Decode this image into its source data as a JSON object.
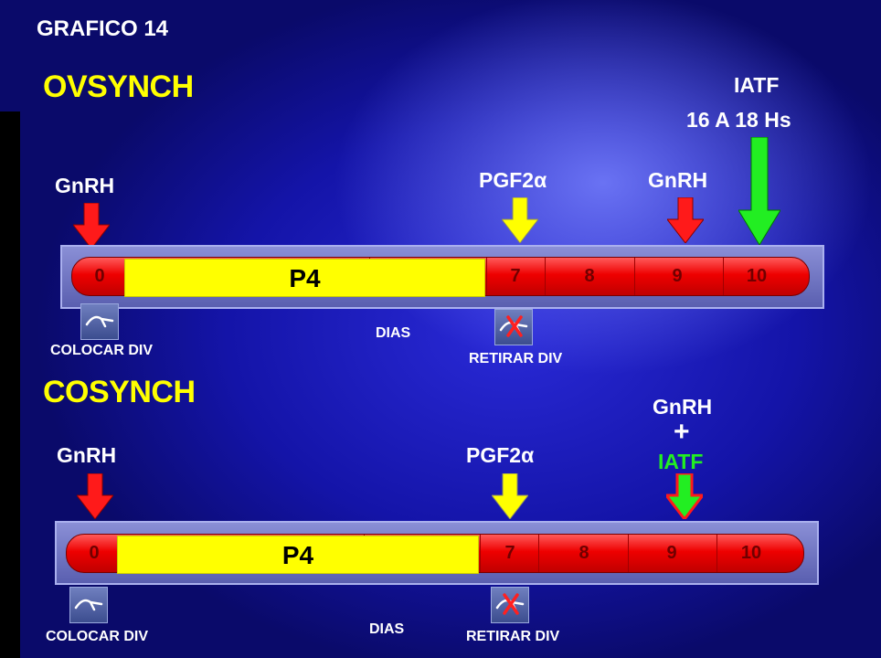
{
  "header": {
    "title": "GRAFICO   14"
  },
  "ovsynch": {
    "name": "OVSYNCH",
    "gnrh_start": "GnRH",
    "pgf": "PGF2α",
    "gnrh_end": "GnRH",
    "iatf": "IATF",
    "iatf_time": "16  A  18  Hs",
    "p4": "P4",
    "days": [
      "0",
      "7",
      "8",
      "9",
      "10"
    ],
    "dias": "DIAS",
    "colocar": "COLOCAR  DIV",
    "retirar": "RETIRAR  DIV"
  },
  "cosynch": {
    "name": "COSYNCH",
    "gnrh_start": "GnRH",
    "pgf": "PGF2α",
    "gnrh_end": "GnRH",
    "plus": "+",
    "iatf": "IATF",
    "p4": "P4",
    "days": [
      "0",
      "7",
      "8",
      "9",
      "10"
    ],
    "dias": "DIAS",
    "colocar": "COLOCAR  DIV",
    "retirar": "RETIRAR  DIV"
  },
  "icons": {
    "insert": "device-insert-icon",
    "remove": "device-remove-icon",
    "arrow_red": "red-down-arrow-icon",
    "arrow_yellow": "yellow-down-arrow-icon",
    "arrow_green": "green-down-arrow-icon"
  },
  "colors": {
    "gnrh": "#ff1a1a",
    "pgf": "#ffff00",
    "iatf": "#22ee22",
    "p4": "#ffff00",
    "bar": "#ee0000"
  }
}
